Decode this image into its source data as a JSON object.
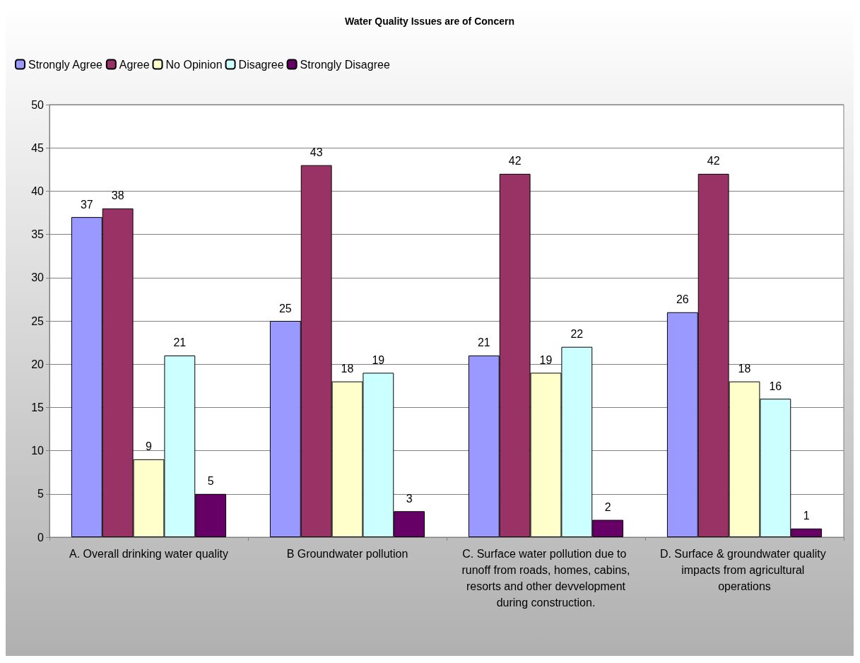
{
  "chart_data": {
    "type": "bar",
    "title": "Water Quality Issues are of Concern",
    "categories": [
      "A. Overall drinking water quality",
      "B Groundwater pollution",
      "C. Surface water pollution due to runoff from roads, homes, cabins, resorts and other devvelopment during construction.",
      "D. Surface & groundwater quality impacts from agricultural operations"
    ],
    "series": [
      {
        "name": "Strongly Agree",
        "color": "#9999ff",
        "values": [
          37,
          25,
          21,
          26
        ]
      },
      {
        "name": "Agree",
        "color": "#993366",
        "values": [
          38,
          43,
          42,
          42
        ]
      },
      {
        "name": "No Opinion",
        "color": "#ffffcc",
        "values": [
          9,
          18,
          19,
          18
        ]
      },
      {
        "name": "Disagree",
        "color": "#ccffff",
        "values": [
          21,
          19,
          22,
          16
        ]
      },
      {
        "name": "Strongly Disagree",
        "color": "#660066",
        "values": [
          5,
          3,
          2,
          1
        ]
      }
    ],
    "ylim": [
      0,
      50
    ],
    "yticks": [
      0,
      5,
      10,
      15,
      20,
      25,
      30,
      35,
      40,
      45,
      50
    ],
    "grid": "y",
    "legend": "top left",
    "data_labels": true
  }
}
